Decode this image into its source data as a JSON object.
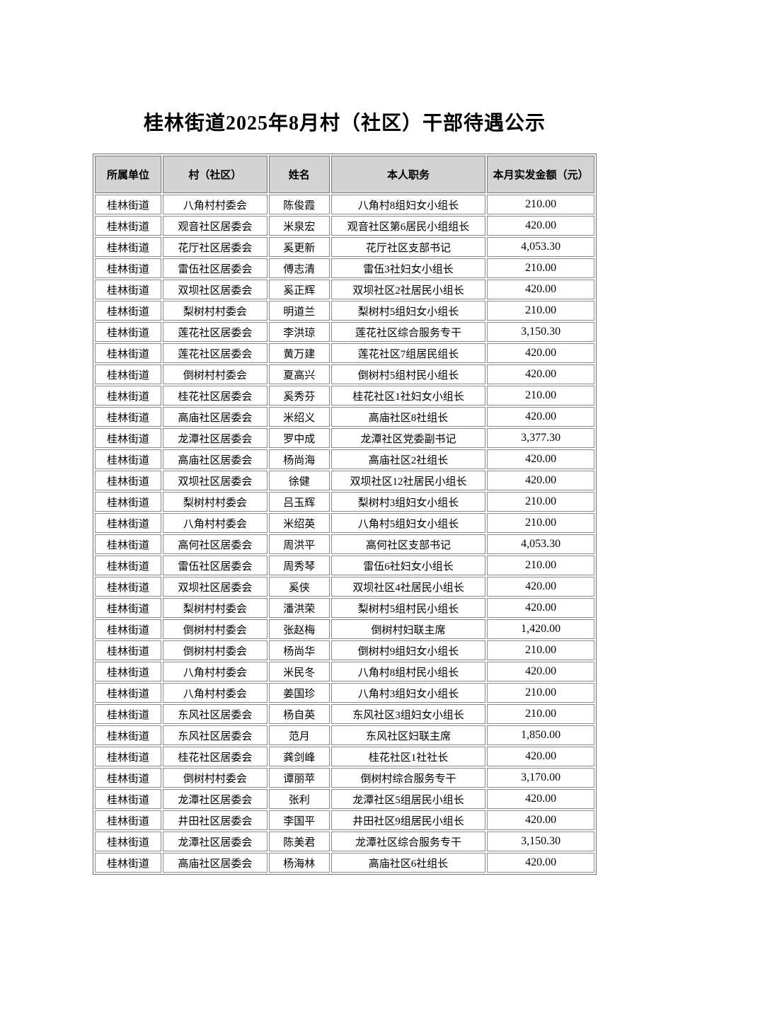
{
  "page": {
    "title": "桂林街道2025年8月村（社区）干部待遇公示"
  },
  "colors": {
    "page_bg": "#ffffff",
    "header_bg": "#d3d3d3",
    "border": "#7a7a7a",
    "text": "#000000"
  },
  "table": {
    "headers": [
      "所属单位",
      "村（社区）",
      "姓名",
      "本人职务",
      "本月实发金额（元）"
    ],
    "rows": [
      [
        "桂林街道",
        "八角村村委会",
        "陈俊霞",
        "八角村8组妇女小组长",
        "210.00"
      ],
      [
        "桂林街道",
        "观音社区居委会",
        "米泉宏",
        "观音社区第6居民小组组长",
        "420.00"
      ],
      [
        "桂林街道",
        "花厅社区居委会",
        "奚更新",
        "花厅社区支部书记",
        "4,053.30"
      ],
      [
        "桂林街道",
        "雷伍社区居委会",
        "傅志清",
        "雷伍3社妇女小组长",
        "210.00"
      ],
      [
        "桂林街道",
        "双坝社区居委会",
        "奚正辉",
        "双坝社区2社居民小组长",
        "420.00"
      ],
      [
        "桂林街道",
        "梨树村村委会",
        "明道兰",
        "梨树村5组妇女小组长",
        "210.00"
      ],
      [
        "桂林街道",
        "莲花社区居委会",
        "李洪琼",
        "莲花社区综合服务专干",
        "3,150.30"
      ],
      [
        "桂林街道",
        "莲花社区居委会",
        "黄万建",
        "莲花社区7组居民组长",
        "420.00"
      ],
      [
        "桂林街道",
        "倒树村村委会",
        "夏高兴",
        "倒树村5组村民小组长",
        "420.00"
      ],
      [
        "桂林街道",
        "桂花社区居委会",
        "奚秀芬",
        "桂花社区1社妇女小组长",
        "210.00"
      ],
      [
        "桂林街道",
        "高庙社区居委会",
        "米绍义",
        "高庙社区8社组长",
        "420.00"
      ],
      [
        "桂林街道",
        "龙潭社区居委会",
        "罗中成",
        "龙潭社区党委副书记",
        "3,377.30"
      ],
      [
        "桂林街道",
        "高庙社区居委会",
        "杨尚海",
        "高庙社区2社组长",
        "420.00"
      ],
      [
        "桂林街道",
        "双坝社区居委会",
        "徐健",
        "双坝社区12社居民小组长",
        "420.00"
      ],
      [
        "桂林街道",
        "梨树村村委会",
        "吕玉辉",
        "梨树村3组妇女小组长",
        "210.00"
      ],
      [
        "桂林街道",
        "八角村村委会",
        "米绍英",
        "八角村5组妇女小组长",
        "210.00"
      ],
      [
        "桂林街道",
        "高何社区居委会",
        "周洪平",
        "高何社区支部书记",
        "4,053.30"
      ],
      [
        "桂林街道",
        "雷伍社区居委会",
        "周秀琴",
        "雷伍6社妇女小组长",
        "210.00"
      ],
      [
        "桂林街道",
        "双坝社区居委会",
        "奚侠",
        "双坝社区4社居民小组长",
        "420.00"
      ],
      [
        "桂林街道",
        "梨树村村委会",
        "潘洪荣",
        "梨树村5组村民小组长",
        "420.00"
      ],
      [
        "桂林街道",
        "倒树村村委会",
        "张赵梅",
        "倒树村妇联主席",
        "1,420.00"
      ],
      [
        "桂林街道",
        "倒树村村委会",
        "杨尚华",
        "倒树村9组妇女小组长",
        "210.00"
      ],
      [
        "桂林街道",
        "八角村村委会",
        "米民冬",
        "八角村8组村民小组长",
        "420.00"
      ],
      [
        "桂林街道",
        "八角村村委会",
        "姜国珍",
        "八角村3组妇女小组长",
        "210.00"
      ],
      [
        "桂林街道",
        "东风社区居委会",
        "杨自英",
        "东风社区3组妇女小组长",
        "210.00"
      ],
      [
        "桂林街道",
        "东风社区居委会",
        "范月",
        "东风社区妇联主席",
        "1,850.00"
      ],
      [
        "桂林街道",
        "桂花社区居委会",
        "龚剑峰",
        "桂花社区1社社长",
        "420.00"
      ],
      [
        "桂林街道",
        "倒树村村委会",
        "谭丽苹",
        "倒树村综合服务专干",
        "3,170.00"
      ],
      [
        "桂林街道",
        "龙潭社区居委会",
        "张利",
        "龙潭社区5组居民小组长",
        "420.00"
      ],
      [
        "桂林街道",
        "井田社区居委会",
        "李国平",
        "井田社区9组居民小组长",
        "420.00"
      ],
      [
        "桂林街道",
        "龙潭社区居委会",
        "陈美君",
        "龙潭社区综合服务专干",
        "3,150.30"
      ],
      [
        "桂林街道",
        "高庙社区居委会",
        "杨海林",
        "高庙社区6社组长",
        "420.00"
      ]
    ]
  }
}
